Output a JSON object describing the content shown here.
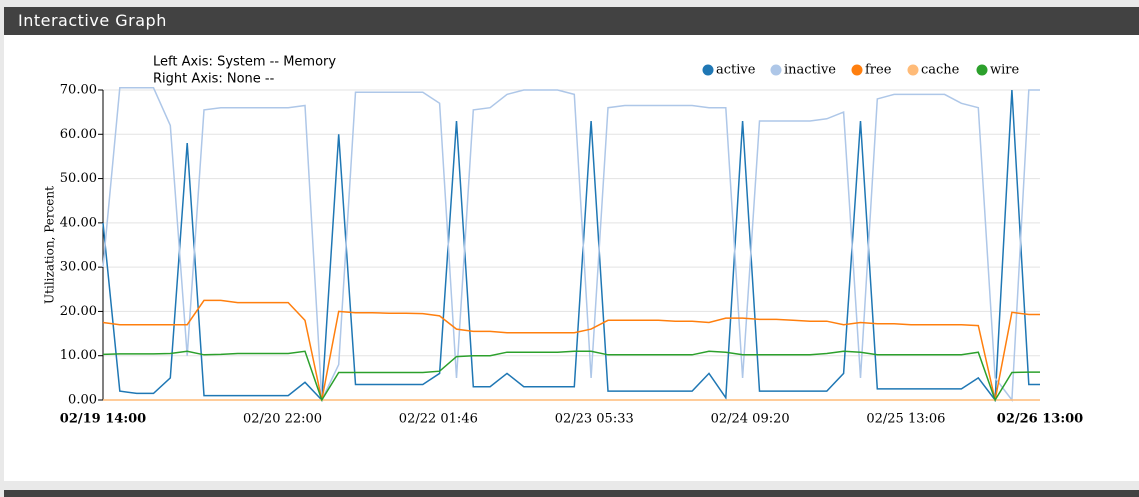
{
  "header": "Interactive Graph",
  "chart_data": {
    "type": "line",
    "annotations": [
      "Left Axis: System -- Memory",
      "Right Axis: None --"
    ],
    "ylabel": "Utilization, Percent",
    "x": [
      "02/19 14:00",
      "02/19 17:00",
      "02/19 20:00",
      "02/19 23:00",
      "02/20 02:00",
      "02/20 05:00",
      "02/20 08:00",
      "02/20 11:00",
      "02/20 14:00",
      "02/20 17:00",
      "02/20 20:00",
      "02/20 23:00",
      "02/21 02:00",
      "02/21 05:00",
      "02/21 08:00",
      "02/21 11:00",
      "02/21 14:00",
      "02/21 17:00",
      "02/21 20:00",
      "02/21 23:00",
      "02/22 02:00",
      "02/22 05:00",
      "02/22 08:00",
      "02/22 11:00",
      "02/22 14:00",
      "02/22 17:00",
      "02/22 20:00",
      "02/22 23:00",
      "02/23 02:00",
      "02/23 05:00",
      "02/23 08:00",
      "02/23 11:00",
      "02/23 14:00",
      "02/23 17:00",
      "02/23 20:00",
      "02/23 23:00",
      "02/24 02:00",
      "02/24 05:00",
      "02/24 08:00",
      "02/24 11:00",
      "02/24 14:00",
      "02/24 17:00",
      "02/24 20:00",
      "02/24 23:00",
      "02/25 02:00",
      "02/25 05:00",
      "02/25 08:00",
      "02/25 11:00",
      "02/25 14:00",
      "02/25 17:00",
      "02/25 20:00",
      "02/25 23:00",
      "02/26 02:00",
      "02/26 05:00",
      "02/26 08:00",
      "02/26 11:00",
      "02/26 13:00"
    ],
    "series": [
      {
        "name": "active",
        "color": "#1f77b4",
        "values": [
          40,
          2,
          1.5,
          1.5,
          5,
          58,
          1,
          1,
          1,
          1,
          1,
          1,
          4,
          0,
          60,
          3.5,
          3.5,
          3.5,
          3.5,
          3.5,
          6,
          63,
          3,
          3,
          6,
          3,
          3,
          3,
          3,
          63,
          2,
          2,
          2,
          2,
          2,
          2,
          6,
          0.5,
          63,
          2,
          2,
          2,
          2,
          2,
          6,
          63,
          2.5,
          2.5,
          2.5,
          2.5,
          2.5,
          2.5,
          5,
          0,
          70,
          3.5,
          3.5
        ]
      },
      {
        "name": "inactive",
        "color": "#aec7e8",
        "values": [
          30,
          70.5,
          70.5,
          70.5,
          62,
          10,
          65.5,
          66,
          66,
          66,
          66,
          66,
          66.5,
          0,
          8,
          69.5,
          69.5,
          69.5,
          69.5,
          69.5,
          67,
          5,
          65.5,
          66,
          69,
          70,
          70,
          70,
          69,
          5,
          66,
          66.5,
          66.5,
          66.5,
          66.5,
          66.5,
          66,
          66,
          5,
          63,
          63,
          63,
          63,
          63.5,
          65,
          5,
          68,
          69,
          69,
          69,
          69,
          67,
          66,
          5,
          0,
          70,
          70
        ]
      },
      {
        "name": "free",
        "color": "#ff7f0e",
        "values": [
          17.5,
          17,
          17,
          17,
          17,
          17,
          22.5,
          22.5,
          22,
          22,
          22,
          22,
          18,
          0,
          20,
          19.7,
          19.7,
          19.6,
          19.6,
          19.5,
          19,
          16,
          15.5,
          15.5,
          15.2,
          15.2,
          15.2,
          15.2,
          15.2,
          16,
          18,
          18,
          18,
          18,
          17.8,
          17.8,
          17.5,
          18.5,
          18.5,
          18.2,
          18.2,
          18,
          17.8,
          17.8,
          17,
          17.5,
          17.2,
          17.2,
          17,
          17,
          17,
          17,
          16.8,
          0,
          19.8,
          19.3,
          19.3
        ]
      },
      {
        "name": "cache",
        "color": "#ffbb78",
        "values": [
          0,
          0,
          0,
          0,
          0,
          0,
          0,
          0,
          0,
          0,
          0,
          0,
          0,
          0,
          0,
          0,
          0,
          0,
          0,
          0,
          0,
          0,
          0,
          0,
          0,
          0,
          0,
          0,
          0,
          0,
          0,
          0,
          0,
          0,
          0,
          0,
          0,
          0,
          0,
          0,
          0,
          0,
          0,
          0,
          0,
          0,
          0,
          0,
          0,
          0,
          0,
          0,
          0,
          0,
          0,
          0,
          0
        ]
      },
      {
        "name": "wire",
        "color": "#2ca02c",
        "values": [
          10.3,
          10.4,
          10.4,
          10.4,
          10.5,
          11,
          10.2,
          10.3,
          10.5,
          10.5,
          10.5,
          10.5,
          11,
          0,
          6.2,
          6.2,
          6.2,
          6.2,
          6.2,
          6.2,
          6.5,
          9.8,
          10,
          10,
          10.8,
          10.8,
          10.8,
          10.8,
          11,
          11,
          10.2,
          10.2,
          10.2,
          10.2,
          10.2,
          10.2,
          11,
          10.8,
          10.2,
          10.2,
          10.2,
          10.2,
          10.2,
          10.5,
          11,
          10.8,
          10.2,
          10.2,
          10.2,
          10.2,
          10.2,
          10.2,
          10.8,
          0,
          6.2,
          6.3,
          6.3
        ]
      }
    ],
    "xlim": [
      "02/19 14:00",
      "02/26 13:00"
    ],
    "xticks": [
      "02/19 14:00",
      "02/20 22:00",
      "02/22 01:46",
      "02/23 05:33",
      "02/24 09:20",
      "02/25 13:06",
      "02/26 13:00"
    ],
    "ylim": [
      0,
      70
    ],
    "yticks": [
      {
        "value": 0,
        "label": "0.00"
      },
      {
        "value": 10,
        "label": "10.00"
      },
      {
        "value": 20,
        "label": "20.00"
      },
      {
        "value": 30,
        "label": "30.00"
      },
      {
        "value": 40,
        "label": "40.00"
      },
      {
        "value": 50,
        "label": "50.00"
      },
      {
        "value": 60,
        "label": "60.00"
      },
      {
        "value": 70,
        "label": "70.00"
      }
    ],
    "grid": true,
    "legend": "top-right"
  }
}
